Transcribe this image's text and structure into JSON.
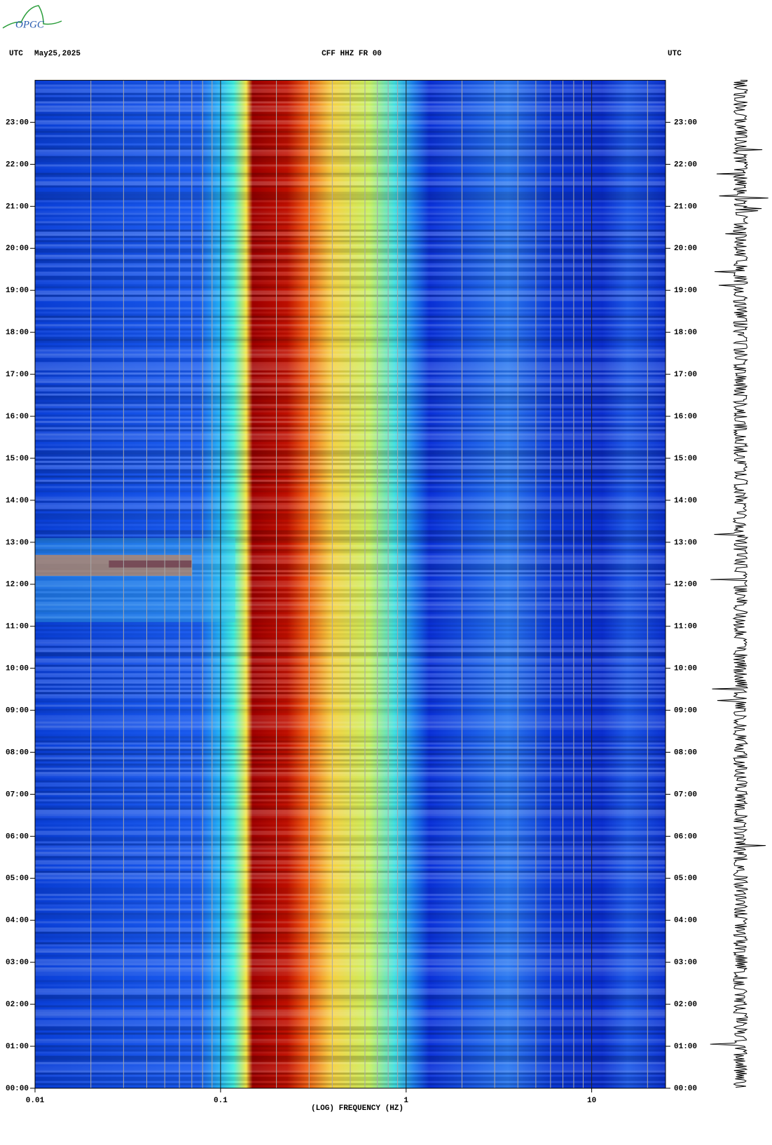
{
  "chart_data": {
    "type": "spectrogram",
    "logo": "OPGC",
    "timezone": "UTC",
    "date": "May25,2025",
    "title": "CFF HHZ FR 00",
    "xlabel": "(LOG) FREQUENCY (HZ)",
    "xscale": "log",
    "xlim": [
      0.01,
      25
    ],
    "xticks": [
      0.01,
      0.1,
      1,
      10
    ],
    "xminorticks": [
      0.02,
      0.03,
      0.04,
      0.05,
      0.06,
      0.07,
      0.08,
      0.09,
      0.2,
      0.3,
      0.4,
      0.5,
      0.6,
      0.7,
      0.8,
      0.9,
      2,
      3,
      4,
      5,
      6,
      7,
      8,
      9,
      20
    ],
    "ylim": [
      0,
      24
    ],
    "yticks": [
      {
        "value": 0,
        "label": "00:00"
      },
      {
        "value": 1,
        "label": "01:00"
      },
      {
        "value": 2,
        "label": "02:00"
      },
      {
        "value": 3,
        "label": "03:00"
      },
      {
        "value": 4,
        "label": "04:00"
      },
      {
        "value": 5,
        "label": "05:00"
      },
      {
        "value": 6,
        "label": "06:00"
      },
      {
        "value": 7,
        "label": "07:00"
      },
      {
        "value": 8,
        "label": "08:00"
      },
      {
        "value": 9,
        "label": "09:00"
      },
      {
        "value": 10,
        "label": "10:00"
      },
      {
        "value": 11,
        "label": "11:00"
      },
      {
        "value": 12,
        "label": "12:00"
      },
      {
        "value": 13,
        "label": "13:00"
      },
      {
        "value": 14,
        "label": "14:00"
      },
      {
        "value": 15,
        "label": "15:00"
      },
      {
        "value": 16,
        "label": "16:00"
      },
      {
        "value": 17,
        "label": "17:00"
      },
      {
        "value": 18,
        "label": "18:00"
      },
      {
        "value": 19,
        "label": "19:00"
      },
      {
        "value": 20,
        "label": "20:00"
      },
      {
        "value": 21,
        "label": "21:00"
      },
      {
        "value": 22,
        "label": "22:00"
      },
      {
        "value": 23,
        "label": "23:00"
      }
    ]
  }
}
